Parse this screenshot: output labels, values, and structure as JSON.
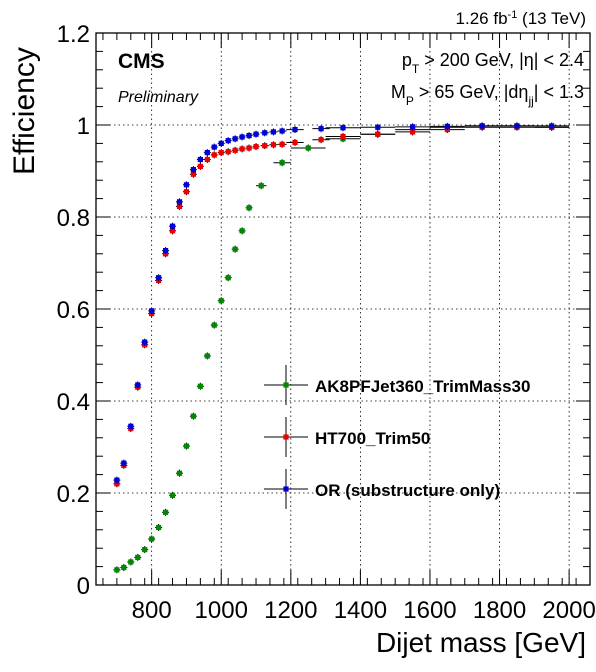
{
  "chart_data": {
    "type": "scatter",
    "title": "",
    "lumi_label": "1.26 fb",
    "lumi_sup": "-1",
    "lumi_energy": " (13 TeV)",
    "experiment": "CMS",
    "status": "Preliminary",
    "xlabel": "Dijet mass [GeV]",
    "ylabel": "Efficiency",
    "xlim": [
      640,
      2060
    ],
    "ylim": [
      0,
      1.2
    ],
    "xticks": [
      "800",
      "1000",
      "1200",
      "1400",
      "1600",
      "1800",
      "2000"
    ],
    "yticks": [
      "0",
      "0.2",
      "0.4",
      "0.6",
      "0.8",
      "1",
      "1.2"
    ],
    "grid": true,
    "legend_position": "center-right",
    "cuts": {
      "line1": {
        "a": "p",
        "a_sub": "T",
        "b": " > 200 GeV, |η| < 2.4"
      },
      "line2": {
        "a": "M",
        "a_sub": "P",
        "b": " > 65 GeV, |dη",
        "b_sub": "jj",
        "c": "| < 1.3"
      }
    },
    "series": [
      {
        "name": "AK8PFJet360_TrimMass30",
        "color": "#008800",
        "x": [
          700,
          720,
          740,
          760,
          780,
          800,
          820,
          840,
          860,
          880,
          900,
          920,
          940,
          960,
          980,
          1000,
          1020,
          1040,
          1060,
          1080,
          1115,
          1175,
          1250,
          1350,
          1450,
          1550,
          1650,
          1750,
          1850,
          1950
        ],
        "y": [
          0.033,
          0.038,
          0.05,
          0.06,
          0.077,
          0.1,
          0.125,
          0.158,
          0.195,
          0.243,
          0.302,
          0.367,
          0.432,
          0.498,
          0.565,
          0.618,
          0.668,
          0.73,
          0.77,
          0.82,
          0.868,
          0.918,
          0.95,
          0.97,
          0.98,
          0.99,
          0.995,
          0.998,
          0.998,
          0.995
        ],
        "xerr": [
          10,
          10,
          10,
          10,
          10,
          10,
          10,
          10,
          10,
          10,
          10,
          10,
          10,
          10,
          10,
          10,
          10,
          10,
          10,
          10,
          15,
          25,
          50,
          50,
          50,
          50,
          50,
          50,
          50,
          50
        ]
      },
      {
        "name": "HT700_Trim50",
        "color": "#ee0000",
        "x": [
          700,
          720,
          740,
          760,
          780,
          800,
          820,
          840,
          860,
          880,
          900,
          920,
          940,
          960,
          980,
          1000,
          1020,
          1040,
          1060,
          1080,
          1100,
          1125,
          1150,
          1175,
          1212,
          1287,
          1350,
          1450,
          1550,
          1650,
          1750,
          1850,
          1950
        ],
        "y": [
          0.22,
          0.26,
          0.34,
          0.43,
          0.522,
          0.59,
          0.662,
          0.72,
          0.77,
          0.823,
          0.855,
          0.893,
          0.91,
          0.925,
          0.935,
          0.94,
          0.942,
          0.945,
          0.948,
          0.95,
          0.953,
          0.955,
          0.957,
          0.958,
          0.962,
          0.968,
          0.975,
          0.98,
          0.985,
          0.99,
          0.995,
          0.995,
          0.995
        ],
        "xerr": [
          10,
          10,
          10,
          10,
          10,
          10,
          10,
          10,
          10,
          10,
          10,
          10,
          10,
          10,
          10,
          10,
          10,
          10,
          10,
          10,
          10,
          12,
          12,
          13,
          25,
          25,
          50,
          50,
          50,
          50,
          50,
          50,
          50
        ]
      },
      {
        "name": "OR (substructure only)",
        "color": "#0000dd",
        "x": [
          700,
          720,
          740,
          760,
          780,
          800,
          820,
          840,
          860,
          880,
          900,
          920,
          940,
          960,
          980,
          1000,
          1020,
          1040,
          1060,
          1080,
          1100,
          1125,
          1150,
          1175,
          1212,
          1287,
          1350,
          1450,
          1550,
          1650,
          1750,
          1850,
          1950
        ],
        "y": [
          0.228,
          0.265,
          0.345,
          0.435,
          0.528,
          0.596,
          0.668,
          0.727,
          0.78,
          0.833,
          0.87,
          0.903,
          0.925,
          0.94,
          0.952,
          0.96,
          0.966,
          0.97,
          0.974,
          0.977,
          0.98,
          0.983,
          0.985,
          0.987,
          0.99,
          0.992,
          0.994,
          0.995,
          0.996,
          0.997,
          0.998,
          0.998,
          0.998
        ],
        "xerr": [
          10,
          10,
          10,
          10,
          10,
          10,
          10,
          10,
          10,
          10,
          10,
          10,
          10,
          10,
          10,
          10,
          10,
          10,
          10,
          10,
          10,
          12,
          12,
          13,
          25,
          25,
          50,
          50,
          50,
          50,
          50,
          50,
          50
        ]
      }
    ]
  }
}
